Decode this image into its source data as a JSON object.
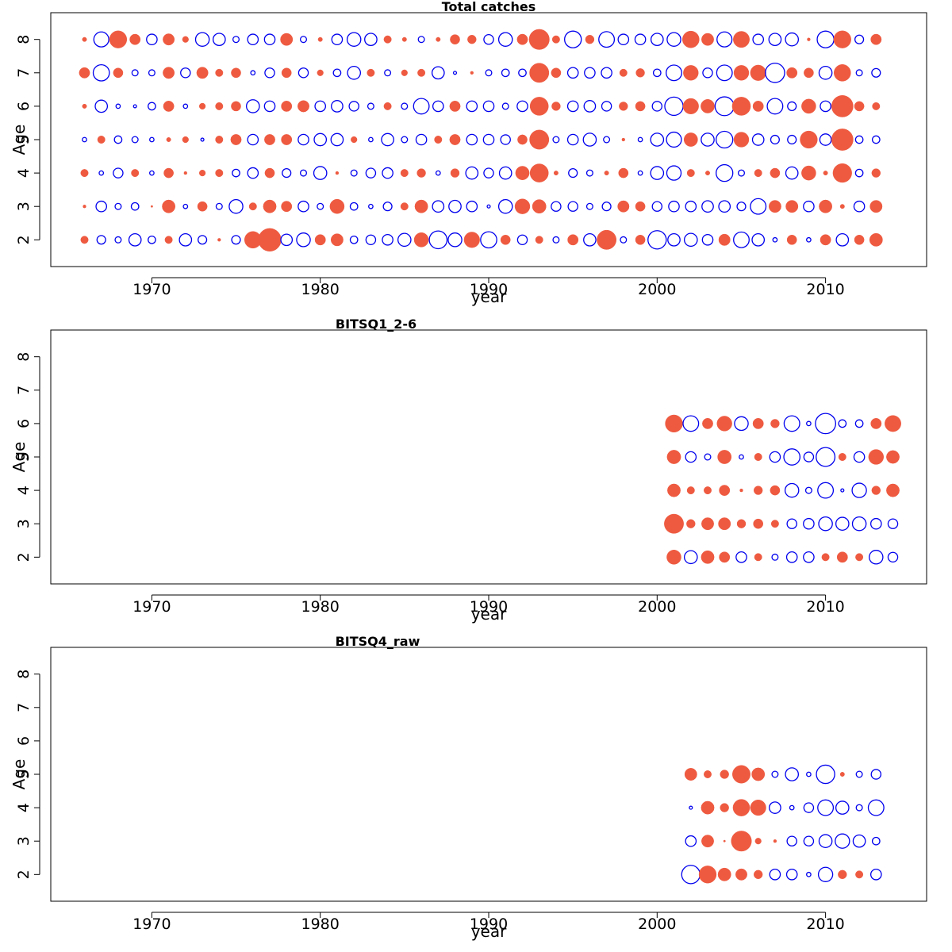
{
  "chart_data": [
    {
      "type": "bubble",
      "title": "Total catches",
      "xlabel": "year",
      "ylabel": "Age",
      "xlim": [
        1964,
        2016
      ],
      "ylim": [
        1.2,
        8.8
      ],
      "xticks": [
        1970,
        1980,
        1990,
        2000,
        2010
      ],
      "yticks": [
        2,
        3,
        4,
        5,
        6,
        7,
        8
      ],
      "positive_color": "#ee5a40",
      "negative_color": "#0000ee",
      "encoding": "signed residual; filled red = positive, open blue = negative; circle area proportional to magnitude",
      "years": [
        1966,
        1967,
        1968,
        1969,
        1970,
        1971,
        1972,
        1973,
        1974,
        1975,
        1976,
        1977,
        1978,
        1979,
        1980,
        1981,
        1982,
        1983,
        1984,
        1985,
        1986,
        1987,
        1988,
        1989,
        1990,
        1991,
        1992,
        1993,
        1994,
        1995,
        1996,
        1997,
        1998,
        1999,
        2000,
        2001,
        2002,
        2003,
        2004,
        2005,
        2006,
        2007,
        2008,
        2009,
        2010,
        2011,
        2012,
        2013
      ],
      "residuals": {
        "8": [
          0.1,
          -1.2,
          1.6,
          0.6,
          -0.6,
          0.7,
          0.2,
          -1.0,
          -0.8,
          -0.2,
          -0.6,
          -0.6,
          0.8,
          -0.2,
          0.1,
          -0.6,
          -1.0,
          -0.8,
          0.3,
          0.1,
          -0.2,
          0.1,
          0.5,
          0.4,
          -0.5,
          -1.0,
          0.6,
          2.2,
          0.3,
          -1.5,
          0.4,
          -1.3,
          -0.6,
          -0.6,
          -0.8,
          -1.0,
          1.5,
          0.8,
          -1.2,
          1.4,
          -0.6,
          -0.8,
          -0.9,
          0.05,
          -1.5,
          1.6,
          -0.4,
          0.6
        ],
        "7": [
          0.6,
          -1.4,
          0.5,
          -0.2,
          -0.2,
          0.7,
          -0.5,
          0.7,
          0.3,
          0.5,
          -0.1,
          -0.5,
          0.5,
          -0.5,
          0.2,
          -0.3,
          -0.9,
          0.3,
          -0.2,
          0.2,
          0.3,
          -0.8,
          -0.05,
          0.05,
          -0.2,
          -0.3,
          -0.3,
          2.0,
          0.5,
          -0.6,
          -0.6,
          -0.6,
          0.3,
          0.4,
          -0.3,
          -1.3,
          1.2,
          -0.5,
          -1.3,
          1.2,
          1.3,
          -2.0,
          0.6,
          0.5,
          -0.9,
          1.5,
          -0.2,
          -0.4
        ],
        "6": [
          0.1,
          -0.8,
          -0.1,
          -0.05,
          -0.3,
          0.6,
          -0.1,
          0.2,
          0.3,
          0.5,
          -0.9,
          -0.6,
          0.6,
          0.7,
          -0.6,
          -0.7,
          -0.5,
          -0.2,
          0.3,
          -0.2,
          -1.3,
          -0.6,
          0.6,
          -0.6,
          -0.6,
          -0.2,
          -0.6,
          1.8,
          0.4,
          -0.6,
          -0.7,
          -0.5,
          0.4,
          0.5,
          -0.5,
          -1.8,
          1.3,
          1.0,
          -1.9,
          1.8,
          0.6,
          -1.3,
          -0.4,
          1.1,
          -0.6,
          2.5,
          0.5,
          0.3
        ],
        "5": [
          -0.1,
          0.3,
          -0.3,
          -0.2,
          -0.1,
          0.1,
          0.2,
          -0.05,
          0.3,
          0.6,
          -0.6,
          0.6,
          0.6,
          -0.6,
          -0.8,
          -0.8,
          0.2,
          -0.1,
          -0.8,
          -0.2,
          -0.6,
          0.3,
          0.6,
          -0.6,
          -0.6,
          -0.5,
          0.5,
          2.0,
          -0.2,
          -0.6,
          -0.9,
          -0.2,
          0.05,
          -0.1,
          -0.9,
          -1.2,
          1.0,
          -0.9,
          -1.5,
          1.2,
          -0.7,
          -0.4,
          -0.4,
          1.6,
          -0.7,
          2.5,
          -0.3,
          -0.3
        ],
        "4": [
          0.3,
          -0.1,
          -0.5,
          0.3,
          -0.1,
          0.5,
          0.05,
          0.2,
          0.3,
          -0.3,
          -0.6,
          0.5,
          -0.4,
          -0.2,
          -0.9,
          0.05,
          -0.2,
          -0.5,
          -0.6,
          0.3,
          0.4,
          -0.1,
          0.4,
          -0.8,
          -0.5,
          -0.8,
          1.0,
          1.8,
          0.1,
          -0.4,
          -0.2,
          0.1,
          0.5,
          -0.1,
          -0.9,
          -1.1,
          0.3,
          0.1,
          -1.5,
          -0.2,
          0.3,
          0.5,
          -0.8,
          1.1,
          0.1,
          1.9,
          -0.3,
          0.4
        ],
        "3": [
          0.05,
          -0.6,
          -0.2,
          -0.3,
          0.02,
          0.9,
          -0.1,
          0.5,
          -0.2,
          -1.0,
          0.3,
          0.9,
          0.6,
          -0.6,
          -0.2,
          1.1,
          -0.3,
          -0.1,
          -0.4,
          0.3,
          0.9,
          -0.7,
          -0.8,
          -0.6,
          -0.05,
          -1.0,
          1.2,
          1.0,
          -0.5,
          -0.5,
          -0.2,
          -0.4,
          0.7,
          0.5,
          -0.5,
          -0.6,
          -0.6,
          -0.7,
          -0.7,
          -0.4,
          -1.3,
          0.8,
          0.8,
          -0.6,
          0.9,
          0.1,
          -0.6,
          0.8
        ],
        "2": [
          0.3,
          -0.4,
          -0.2,
          -0.8,
          -0.3,
          0.3,
          -0.8,
          -0.4,
          0.05,
          -0.4,
          1.5,
          2.8,
          -0.7,
          -1.0,
          0.6,
          0.8,
          -0.3,
          -0.5,
          -0.6,
          -0.9,
          1.1,
          -1.7,
          -1.0,
          1.3,
          -1.4,
          0.5,
          -0.5,
          0.3,
          -0.2,
          0.6,
          -0.8,
          2.0,
          -0.2,
          0.5,
          -1.8,
          -0.8,
          -0.9,
          -0.6,
          0.7,
          -1.3,
          -0.8,
          -0.1,
          0.5,
          -0.1,
          0.6,
          -0.8,
          0.5,
          0.9
        ]
      }
    },
    {
      "type": "bubble",
      "title": "BITSQ1_2-6",
      "xlabel": "year",
      "ylabel": "Age",
      "xlim": [
        1964,
        2016
      ],
      "ylim": [
        1.2,
        8.8
      ],
      "xticks": [
        1970,
        1980,
        1990,
        2000,
        2010
      ],
      "yticks": [
        2,
        3,
        4,
        5,
        6,
        7,
        8
      ],
      "positive_color": "#ee5a40",
      "negative_color": "#0000ee",
      "years": [
        2001,
        2002,
        2003,
        2004,
        2005,
        2006,
        2007,
        2008,
        2009,
        2010,
        2011,
        2012,
        2013,
        2014
      ],
      "residuals": {
        "6": [
          1.6,
          -1.3,
          0.6,
          1.2,
          -1.0,
          0.6,
          0.4,
          -1.3,
          -0.1,
          -2.2,
          -0.3,
          -0.3,
          0.6,
          1.4
        ],
        "5": [
          1.0,
          -0.6,
          -0.2,
          1.0,
          -0.1,
          0.3,
          -0.6,
          -1.4,
          -0.5,
          -1.9,
          0.3,
          -0.6,
          1.2,
          0.9
        ],
        "4": [
          0.9,
          0.3,
          0.3,
          0.6,
          0.05,
          0.4,
          0.5,
          -1.0,
          -0.2,
          -1.3,
          -0.05,
          -1.1,
          0.4,
          0.9
        ],
        "3": [
          2.0,
          0.4,
          0.8,
          0.8,
          0.4,
          0.5,
          0.3,
          -0.5,
          -0.6,
          -1.0,
          -0.9,
          -1.0,
          -0.6,
          -0.5
        ],
        "2": [
          1.1,
          -0.9,
          0.9,
          0.6,
          -0.6,
          0.3,
          -0.2,
          -0.6,
          -0.6,
          0.3,
          0.6,
          0.3,
          -1.0,
          -0.5
        ]
      }
    },
    {
      "type": "bubble",
      "title": "BITSQ4_raw",
      "xlabel": "year",
      "ylabel": "Age",
      "xlim": [
        1964,
        2016
      ],
      "ylim": [
        1.2,
        8.8
      ],
      "xticks": [
        1970,
        1980,
        1990,
        2000,
        2010
      ],
      "yticks": [
        2,
        3,
        4,
        5,
        6,
        7,
        8
      ],
      "positive_color": "#ee5a40",
      "negative_color": "#0000ee",
      "years": [
        2002,
        2003,
        2004,
        2005,
        2006,
        2007,
        2008,
        2009,
        2010,
        2011,
        2012,
        2013
      ],
      "residuals": {
        "5": [
          0.8,
          0.3,
          0.4,
          1.7,
          0.9,
          -0.2,
          -0.9,
          -0.1,
          -1.8,
          0.1,
          -0.2,
          -0.5
        ],
        "4": [
          -0.05,
          0.9,
          0.4,
          1.5,
          1.3,
          -0.7,
          -0.1,
          -0.5,
          -1.3,
          -0.9,
          -0.2,
          -1.3
        ],
        "3": [
          -0.6,
          0.8,
          0.02,
          2.2,
          0.2,
          0.05,
          -0.5,
          -0.5,
          -0.9,
          -1.1,
          -0.8,
          -0.3
        ],
        "2": [
          -1.8,
          1.6,
          0.9,
          0.7,
          0.4,
          -0.6,
          -0.6,
          -0.1,
          -1.1,
          0.4,
          0.3,
          -0.6
        ]
      }
    }
  ]
}
